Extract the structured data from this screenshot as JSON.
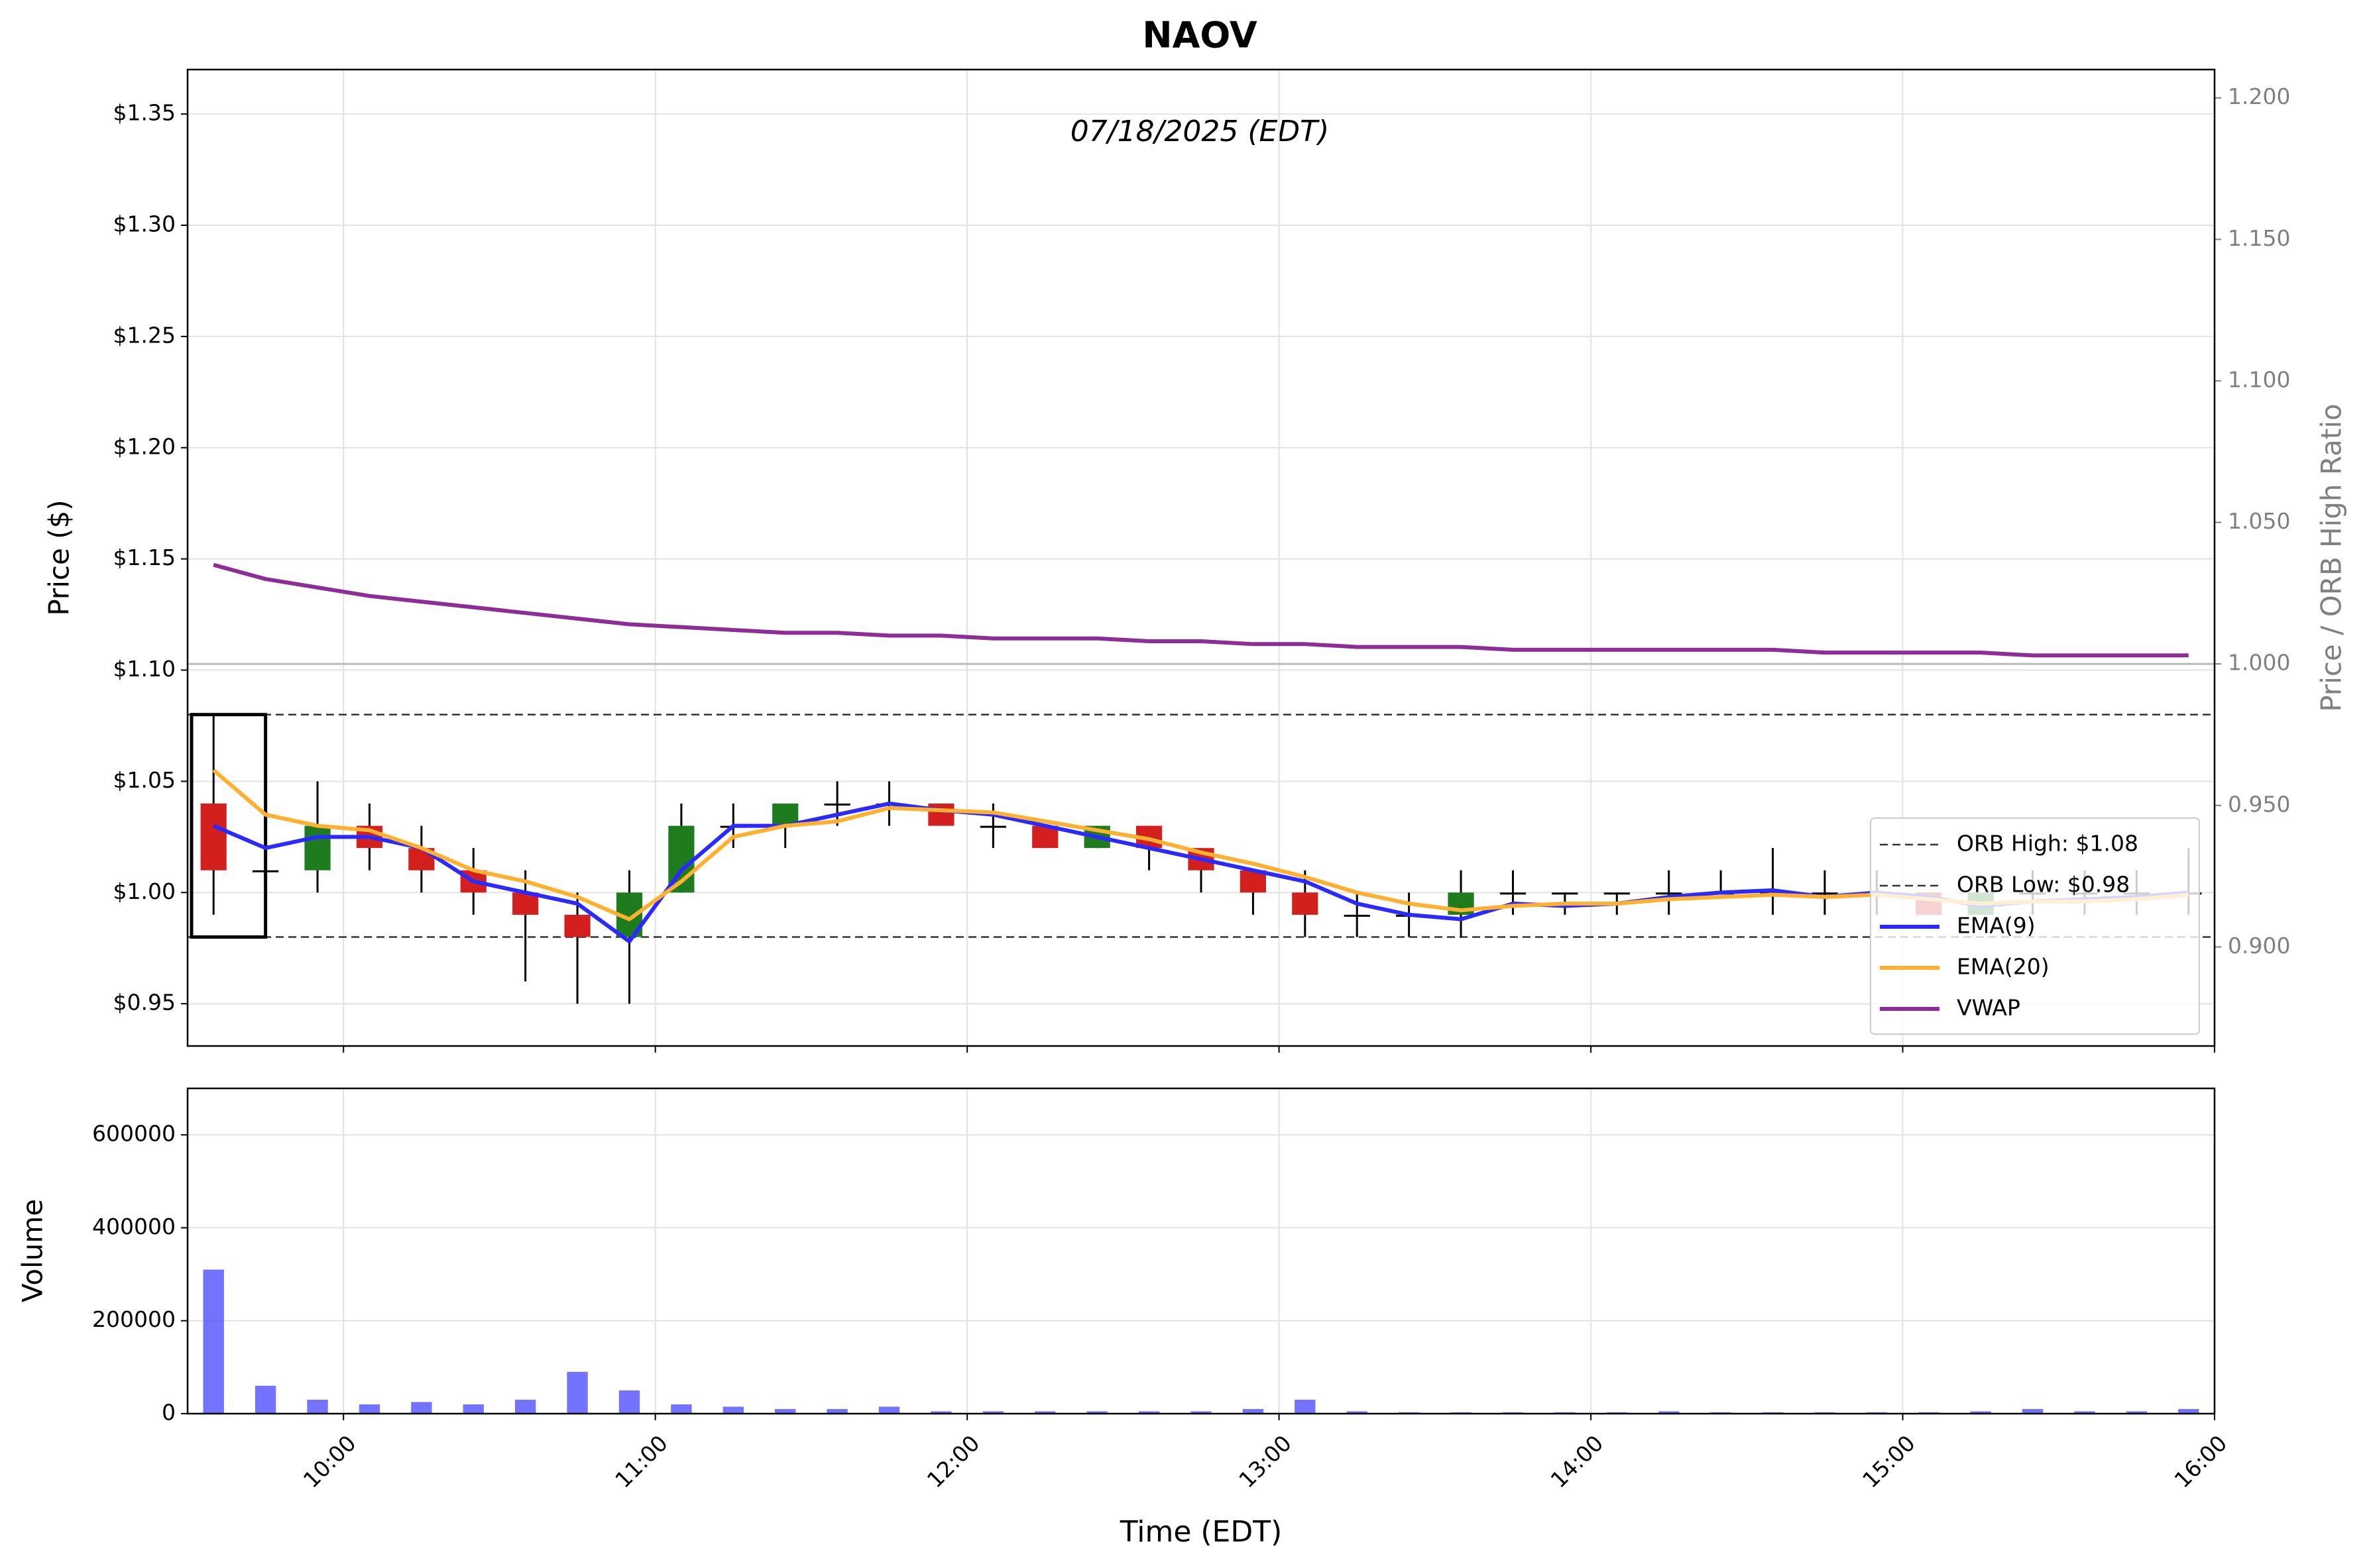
{
  "chart_data": [
    {
      "type": "candlestick",
      "title": "NAOV",
      "annotation": "07/18/2025 (EDT)",
      "y_label": "Price ($)",
      "y2_label": "Price / ORB High Ratio",
      "x": [
        "09:30",
        "09:40",
        "09:50",
        "10:00",
        "10:10",
        "10:20",
        "10:30",
        "10:40",
        "10:50",
        "11:00",
        "11:10",
        "11:20",
        "11:30",
        "11:40",
        "11:50",
        "12:00",
        "12:10",
        "12:20",
        "12:30",
        "12:40",
        "12:50",
        "13:00",
        "13:10",
        "13:20",
        "13:30",
        "13:40",
        "13:50",
        "14:00",
        "14:10",
        "14:20",
        "14:30",
        "14:40",
        "14:50",
        "15:00",
        "15:10",
        "15:20",
        "15:30",
        "15:40",
        "15:50"
      ],
      "open": [
        1.04,
        1.01,
        1.01,
        1.03,
        1.02,
        1.01,
        1.0,
        0.99,
        0.98,
        1.0,
        1.03,
        1.03,
        1.04,
        1.04,
        1.04,
        1.03,
        1.03,
        1.02,
        1.03,
        1.02,
        1.01,
        1.0,
        0.99,
        0.99,
        0.99,
        1.0,
        1.0,
        1.0,
        1.0,
        1.0,
        1.0,
        1.0,
        1.0,
        1.0,
        0.99,
        1.0,
        1.0,
        1.0,
        1.0
      ],
      "high": [
        1.08,
        1.04,
        1.05,
        1.04,
        1.03,
        1.02,
        1.01,
        1.0,
        1.01,
        1.04,
        1.04,
        1.04,
        1.05,
        1.05,
        1.04,
        1.04,
        1.03,
        1.03,
        1.03,
        1.02,
        1.01,
        1.01,
        1.0,
        1.0,
        1.01,
        1.01,
        1.0,
        1.0,
        1.01,
        1.01,
        1.02,
        1.01,
        1.01,
        1.0,
        1.0,
        1.01,
        1.01,
        1.01,
        1.02
      ],
      "low": [
        0.99,
        0.99,
        1.0,
        1.01,
        1.0,
        0.99,
        0.96,
        0.95,
        0.95,
        1.0,
        1.02,
        1.02,
        1.03,
        1.03,
        1.03,
        1.02,
        1.02,
        1.02,
        1.01,
        1.0,
        0.99,
        0.98,
        0.98,
        0.98,
        0.98,
        0.99,
        0.99,
        0.99,
        0.99,
        1.0,
        0.99,
        0.99,
        0.99,
        0.99,
        0.99,
        0.99,
        0.99,
        0.99,
        0.99
      ],
      "close": [
        1.01,
        1.01,
        1.03,
        1.02,
        1.01,
        1.0,
        0.99,
        0.98,
        1.0,
        1.03,
        1.03,
        1.04,
        1.04,
        1.04,
        1.03,
        1.03,
        1.02,
        1.03,
        1.02,
        1.01,
        1.0,
        0.99,
        0.99,
        0.99,
        1.0,
        1.0,
        1.0,
        1.0,
        1.0,
        1.0,
        1.0,
        1.0,
        1.0,
        0.99,
        1.0,
        1.0,
        1.0,
        1.0,
        1.0
      ],
      "up_color": "#1e7b1e",
      "down_color": "#d41f1f",
      "flat_color": "#000000",
      "series": [
        {
          "name": "EMA(9)",
          "color": "#2a2aff",
          "values": [
            1.03,
            1.02,
            1.025,
            1.025,
            1.02,
            1.005,
            1.0,
            0.995,
            0.978,
            1.01,
            1.03,
            1.03,
            1.035,
            1.04,
            1.037,
            1.035,
            1.03,
            1.025,
            1.02,
            1.015,
            1.01,
            1.005,
            0.995,
            0.99,
            0.988,
            0.995,
            0.994,
            0.995,
            0.998,
            1.0,
            1.001,
            0.998,
            1.0,
            0.998,
            0.994,
            0.996,
            0.997,
            0.998,
            1.0
          ]
        },
        {
          "name": "EMA(20)",
          "color": "#ffb030",
          "values": [
            1.055,
            1.035,
            1.03,
            1.028,
            1.02,
            1.01,
            1.005,
            0.998,
            0.988,
            1.005,
            1.025,
            1.03,
            1.032,
            1.038,
            1.037,
            1.036,
            1.032,
            1.028,
            1.024,
            1.018,
            1.013,
            1.007,
            1.0,
            0.995,
            0.992,
            0.994,
            0.995,
            0.995,
            0.997,
            0.998,
            0.999,
            0.998,
            0.999,
            0.997,
            0.995,
            0.996,
            0.996,
            0.997,
            0.999
          ]
        },
        {
          "name": "VWAP",
          "color": "#8e2c98",
          "axis": "y2",
          "values": [
            1.035,
            1.03,
            1.027,
            1.024,
            1.022,
            1.02,
            1.018,
            1.016,
            1.014,
            1.013,
            1.012,
            1.011,
            1.011,
            1.01,
            1.01,
            1.009,
            1.009,
            1.009,
            1.008,
            1.008,
            1.007,
            1.007,
            1.006,
            1.006,
            1.006,
            1.005,
            1.005,
            1.005,
            1.005,
            1.005,
            1.005,
            1.004,
            1.004,
            1.004,
            1.004,
            1.003,
            1.003,
            1.003,
            1.003
          ]
        }
      ],
      "orb_lines": [
        {
          "name": "ORB High: $1.08",
          "value": 1.08
        },
        {
          "name": "ORB Low: $0.98",
          "value": 0.98
        }
      ],
      "orb_end": "09:45",
      "y2_reference": 1,
      "xlim": [
        "09:30",
        "16:00"
      ],
      "xticks": [
        "10:00",
        "11:00",
        "12:00",
        "13:00",
        "14:00",
        "15:00",
        "16:00"
      ],
      "ylim": [
        0.931,
        1.37
      ],
      "yticks": [
        {
          "value": 0.95,
          "label": "$0.95"
        },
        {
          "value": 1.0,
          "label": "$1.00"
        },
        {
          "value": 1.05,
          "label": "$1.05"
        },
        {
          "value": 1.1,
          "label": "$1.10"
        },
        {
          "value": 1.15,
          "label": "$1.15"
        },
        {
          "value": 1.2,
          "label": "$1.20"
        },
        {
          "value": 1.25,
          "label": "$1.25"
        },
        {
          "value": 1.3,
          "label": "$1.30"
        },
        {
          "value": 1.35,
          "label": "$1.35"
        }
      ],
      "y2lim": [
        0.865,
        1.21
      ],
      "y2ticks": [
        {
          "value": 0.9,
          "label": "0.900"
        },
        {
          "value": 0.95,
          "label": "0.950"
        },
        {
          "value": 1.0,
          "label": "1.000"
        },
        {
          "value": 1.05,
          "label": "1.050"
        },
        {
          "value": 1.1,
          "label": "1.100"
        },
        {
          "value": 1.15,
          "label": "1.150"
        },
        {
          "value": 1.2,
          "label": "1.200"
        }
      ],
      "grid": true,
      "legend": "lower right"
    },
    {
      "type": "bar",
      "y_label": "Volume",
      "x_label": "Time (EDT)",
      "color": "#5a5aff",
      "x": [
        "09:30",
        "09:40",
        "09:50",
        "10:00",
        "10:10",
        "10:20",
        "10:30",
        "10:40",
        "10:50",
        "11:00",
        "11:10",
        "11:20",
        "11:30",
        "11:40",
        "11:50",
        "12:00",
        "12:10",
        "12:20",
        "12:30",
        "12:40",
        "12:50",
        "13:00",
        "13:10",
        "13:20",
        "13:30",
        "13:40",
        "13:50",
        "14:00",
        "14:10",
        "14:20",
        "14:30",
        "14:40",
        "14:50",
        "15:00",
        "15:10",
        "15:20",
        "15:30",
        "15:40",
        "15:50"
      ],
      "values": [
        310000,
        60000,
        30000,
        20000,
        25000,
        20000,
        30000,
        90000,
        50000,
        20000,
        15000,
        10000,
        10000,
        15000,
        5000,
        5000,
        5000,
        5000,
        5000,
        5000,
        10000,
        30000,
        5000,
        3000,
        3000,
        3000,
        3000,
        3000,
        5000,
        3000,
        3000,
        3000,
        3000,
        3000,
        5000,
        10000,
        5000,
        5000,
        10000
      ],
      "xlim": [
        "09:30",
        "16:00"
      ],
      "xticks": [
        "10:00",
        "11:00",
        "12:00",
        "13:00",
        "14:00",
        "15:00",
        "16:00"
      ],
      "ylim": [
        0,
        700000
      ],
      "yticks": [
        0,
        200000,
        400000,
        600000
      ],
      "grid": true
    }
  ]
}
